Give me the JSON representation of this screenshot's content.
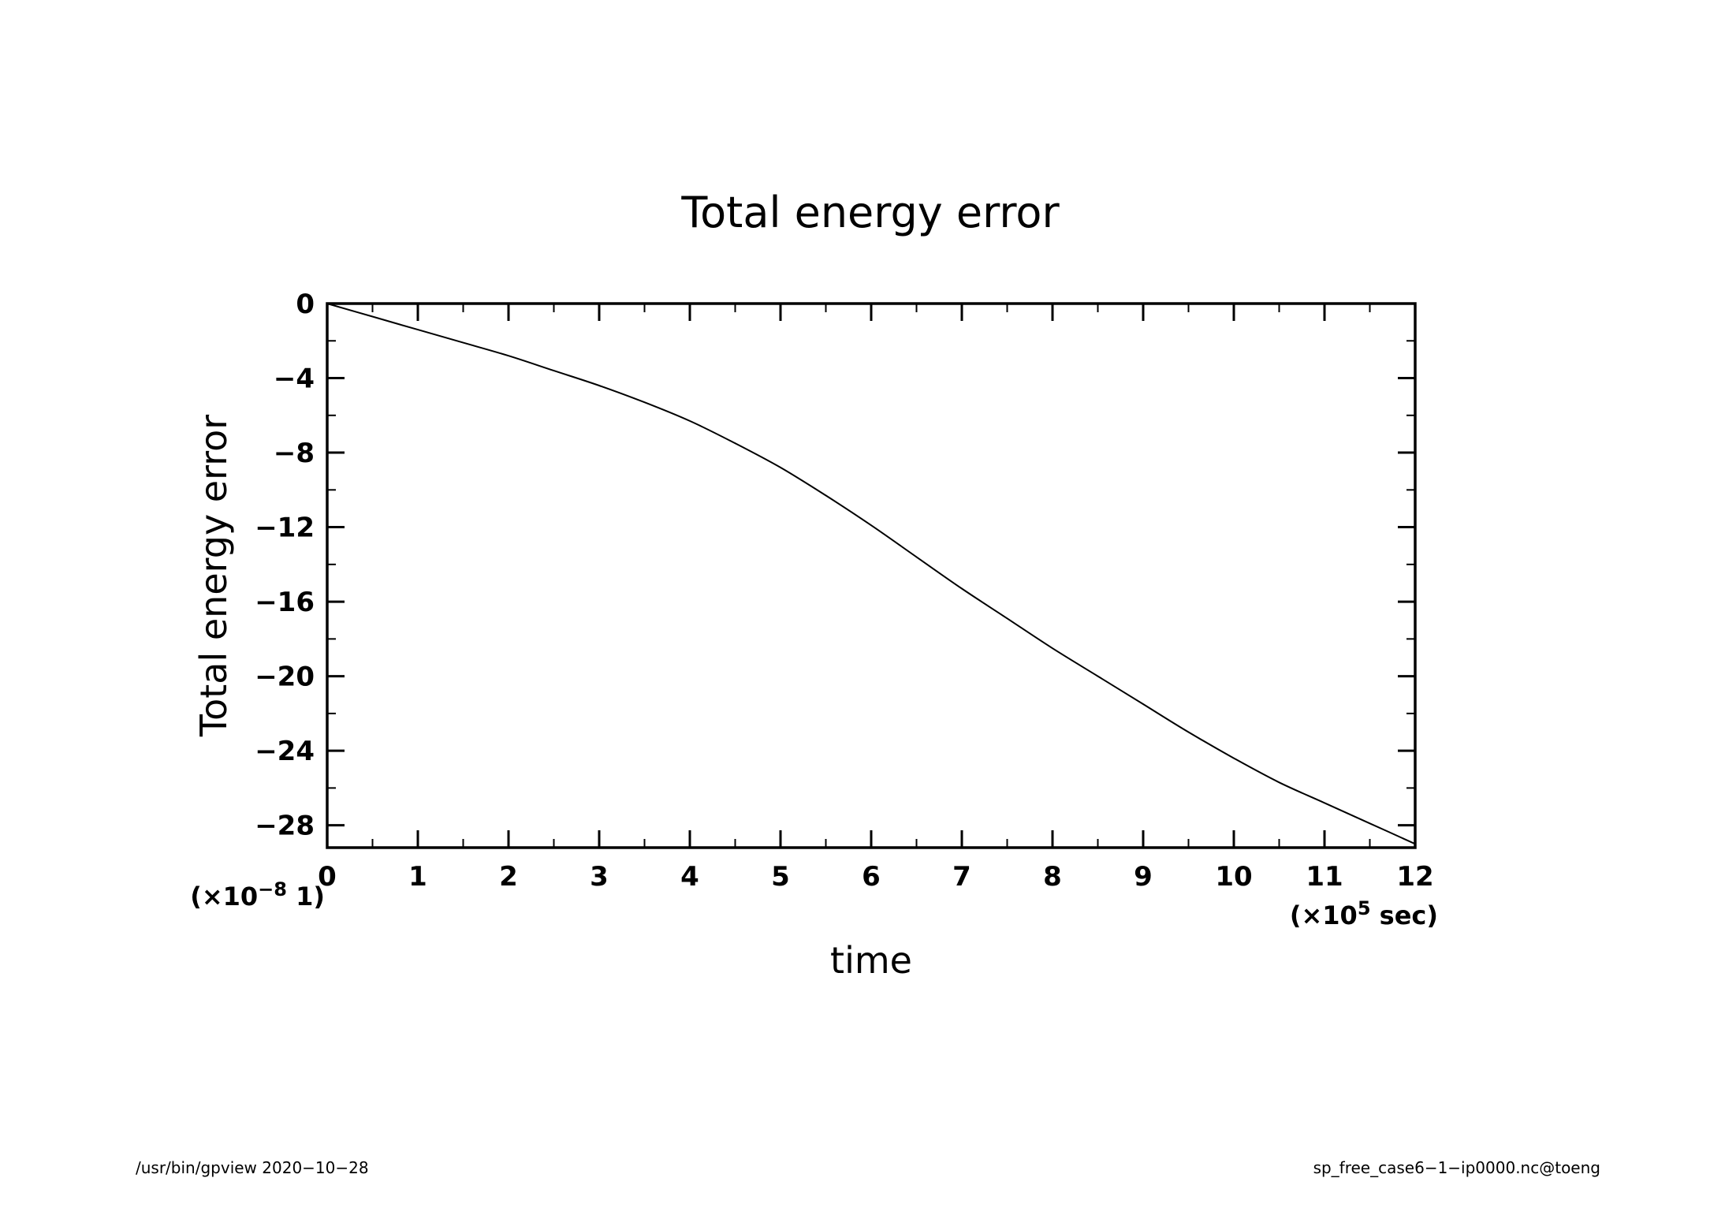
{
  "chart_data": {
    "type": "line",
    "title": "Total energy error",
    "xlabel": "time",
    "ylabel": "Total energy error",
    "x_scale_label": {
      "prefix": "(×10",
      "exp": "5",
      "suffix": " sec)"
    },
    "y_scale_label": {
      "prefix": "(×10",
      "exp": "−8",
      "suffix": " 1)"
    },
    "xlim": [
      0,
      12
    ],
    "ylim": [
      -29.2,
      0
    ],
    "xticks": [
      0,
      1,
      2,
      3,
      4,
      5,
      6,
      7,
      8,
      9,
      10,
      11,
      12
    ],
    "xtick_labels": [
      "0",
      "1",
      "2",
      "3",
      "4",
      "5",
      "6",
      "7",
      "8",
      "9",
      "10",
      "11",
      "12"
    ],
    "yticks": [
      0,
      -4,
      -8,
      -12,
      -16,
      -20,
      -24,
      -28
    ],
    "ytick_labels": [
      "0",
      "−4",
      "−8",
      "−12",
      "−16",
      "−20",
      "−24",
      "−28"
    ],
    "grid": false,
    "series": [
      {
        "x": [
          0,
          0.5,
          1,
          1.5,
          2,
          2.5,
          3,
          3.5,
          4,
          4.5,
          5,
          5.5,
          6,
          6.5,
          7,
          7.5,
          8,
          8.5,
          9,
          9.5,
          10,
          10.5,
          11,
          11.5,
          12
        ],
        "y": [
          0,
          -0.7,
          -1.4,
          -2.1,
          -2.8,
          -3.6,
          -4.4,
          -5.3,
          -6.3,
          -7.5,
          -8.8,
          -10.3,
          -11.9,
          -13.6,
          -15.3,
          -16.9,
          -18.5,
          -20.0,
          -21.5,
          -23.0,
          -24.4,
          -25.7,
          -26.8,
          -27.9,
          -29.0
        ]
      }
    ]
  },
  "footer": {
    "left": "/usr/bin/gpview   2020−10−28",
    "right": "sp_free_case6−1−ip0000.nc@toeng"
  }
}
